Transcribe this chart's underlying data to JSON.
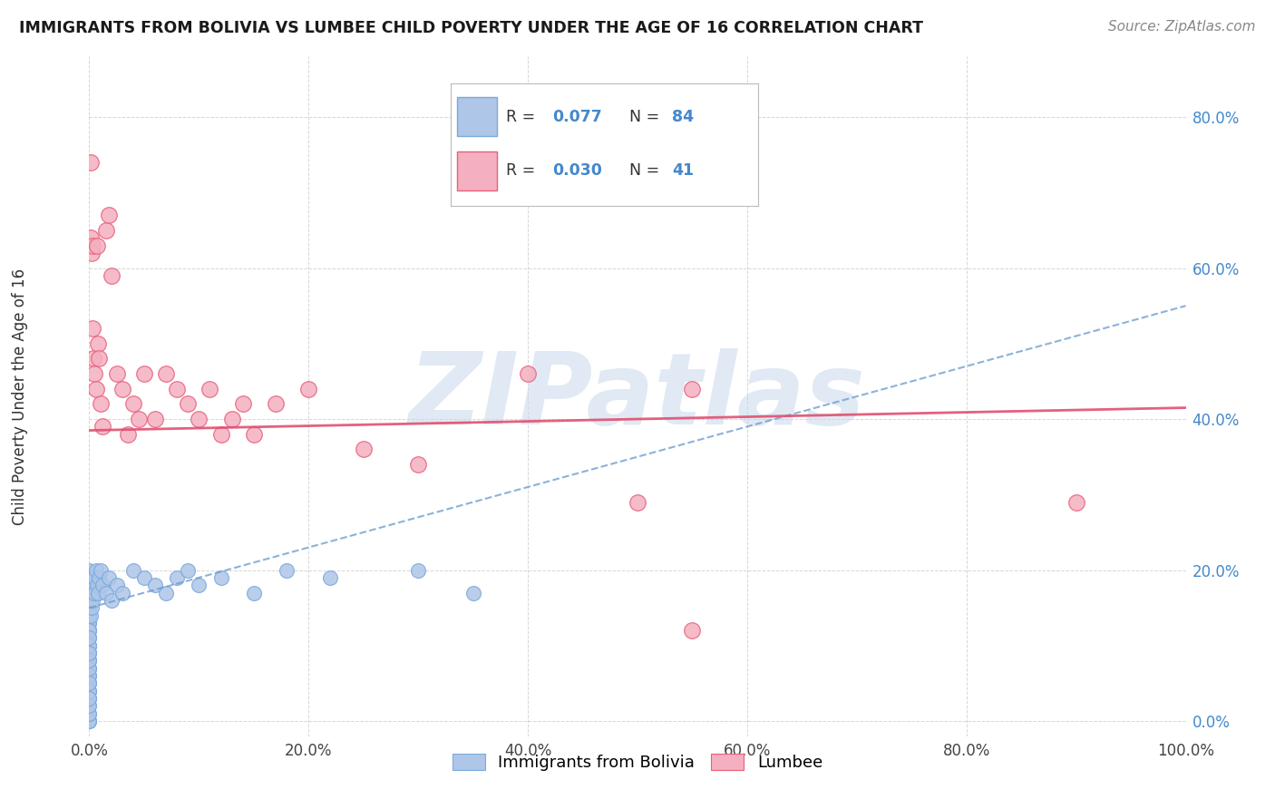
{
  "title": "IMMIGRANTS FROM BOLIVIA VS LUMBEE CHILD POVERTY UNDER THE AGE OF 16 CORRELATION CHART",
  "source": "Source: ZipAtlas.com",
  "ylabel": "Child Poverty Under the Age of 16",
  "xlim": [
    0,
    1.0
  ],
  "ylim": [
    -0.02,
    0.88
  ],
  "bolivia_color": "#aec6e8",
  "lumbee_color": "#f4afc0",
  "bolivia_edge_color": "#7aaadd",
  "lumbee_edge_color": "#e8607a",
  "bolivia_line_color": "#6699cc",
  "lumbee_line_color": "#e05070",
  "bolivia_R": 0.077,
  "bolivia_N": 84,
  "lumbee_R": 0.03,
  "lumbee_N": 41,
  "watermark": "ZIPatlas",
  "watermark_color": "#c8d8eb",
  "bolivia_trend_x0": 0.0,
  "bolivia_trend_y0": 0.15,
  "bolivia_trend_x1": 1.0,
  "bolivia_trend_y1": 0.55,
  "lumbee_trend_x0": 0.0,
  "lumbee_trend_y0": 0.385,
  "lumbee_trend_x1": 1.0,
  "lumbee_trend_y1": 0.415,
  "bolivia_x": [
    0.0,
    0.0,
    0.0,
    0.0,
    0.0,
    0.0,
    0.0,
    0.0,
    0.0,
    0.0,
    0.0,
    0.0,
    0.0,
    0.0,
    0.0,
    0.0,
    0.0,
    0.0,
    0.0,
    0.0,
    0.0,
    0.0,
    0.0,
    0.0,
    0.0,
    0.0,
    0.0,
    0.0,
    0.0,
    0.0,
    0.0,
    0.0,
    0.0,
    0.0,
    0.0,
    0.0,
    0.0,
    0.0,
    0.0,
    0.0,
    0.0,
    0.0,
    0.0,
    0.0,
    0.0,
    0.0,
    0.0,
    0.0,
    0.0,
    0.0,
    0.001,
    0.001,
    0.001,
    0.002,
    0.002,
    0.003,
    0.003,
    0.004,
    0.005,
    0.005,
    0.006,
    0.007,
    0.008,
    0.009,
    0.01,
    0.012,
    0.015,
    0.018,
    0.02,
    0.025,
    0.03,
    0.04,
    0.05,
    0.06,
    0.07,
    0.08,
    0.09,
    0.1,
    0.12,
    0.15,
    0.18,
    0.22,
    0.3,
    0.35
  ],
  "bolivia_y": [
    0.0,
    0.0,
    0.0,
    0.01,
    0.02,
    0.03,
    0.04,
    0.05,
    0.06,
    0.07,
    0.08,
    0.09,
    0.1,
    0.11,
    0.12,
    0.13,
    0.14,
    0.15,
    0.16,
    0.17,
    0.18,
    0.19,
    0.2,
    0.05,
    0.07,
    0.09,
    0.11,
    0.13,
    0.06,
    0.08,
    0.1,
    0.12,
    0.14,
    0.15,
    0.16,
    0.17,
    0.04,
    0.06,
    0.03,
    0.07,
    0.01,
    0.02,
    0.04,
    0.08,
    0.1,
    0.12,
    0.03,
    0.05,
    0.09,
    0.11,
    0.14,
    0.16,
    0.18,
    0.15,
    0.17,
    0.19,
    0.16,
    0.18,
    0.17,
    0.19,
    0.2,
    0.18,
    0.17,
    0.19,
    0.2,
    0.18,
    0.17,
    0.19,
    0.16,
    0.18,
    0.17,
    0.2,
    0.19,
    0.18,
    0.17,
    0.19,
    0.2,
    0.18,
    0.19,
    0.17,
    0.2,
    0.19,
    0.2,
    0.17
  ],
  "lumbee_x": [
    0.001,
    0.001,
    0.002,
    0.003,
    0.003,
    0.004,
    0.005,
    0.006,
    0.007,
    0.008,
    0.009,
    0.01,
    0.012,
    0.015,
    0.018,
    0.02,
    0.025,
    0.03,
    0.035,
    0.04,
    0.045,
    0.05,
    0.06,
    0.07,
    0.08,
    0.09,
    0.1,
    0.11,
    0.12,
    0.13,
    0.14,
    0.15,
    0.17,
    0.2,
    0.25,
    0.3,
    0.4,
    0.5,
    0.55,
    0.9,
    0.55
  ],
  "lumbee_y": [
    0.74,
    0.64,
    0.62,
    0.63,
    0.52,
    0.48,
    0.46,
    0.44,
    0.63,
    0.5,
    0.48,
    0.42,
    0.39,
    0.65,
    0.67,
    0.59,
    0.46,
    0.44,
    0.38,
    0.42,
    0.4,
    0.46,
    0.4,
    0.46,
    0.44,
    0.42,
    0.4,
    0.44,
    0.38,
    0.4,
    0.42,
    0.38,
    0.42,
    0.44,
    0.36,
    0.34,
    0.46,
    0.29,
    0.44,
    0.29,
    0.12
  ]
}
